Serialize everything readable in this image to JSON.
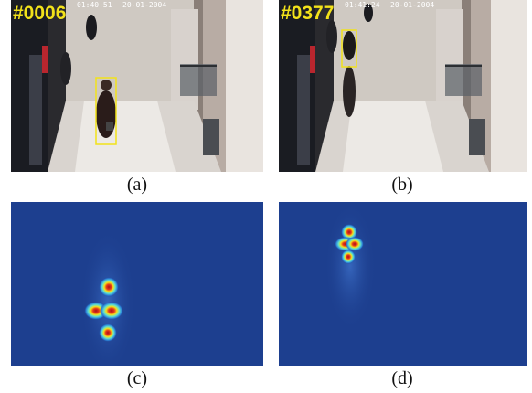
{
  "panels": [
    {
      "id": "a",
      "caption": "(a)",
      "frame_label": "#0006",
      "timestamp_left": "01:40:51",
      "timestamp_right": "20-01-2004"
    },
    {
      "id": "b",
      "caption": "(b)",
      "frame_label": "#0377",
      "timestamp_left": "01:41:24",
      "timestamp_right": "20-01-2004"
    },
    {
      "id": "c",
      "caption": "(c)"
    },
    {
      "id": "d",
      "caption": "(d)"
    }
  ],
  "colors": {
    "box": "#f2e21a",
    "heat_bg": "#1d3f8f",
    "heat_hot": "#c8141c"
  }
}
